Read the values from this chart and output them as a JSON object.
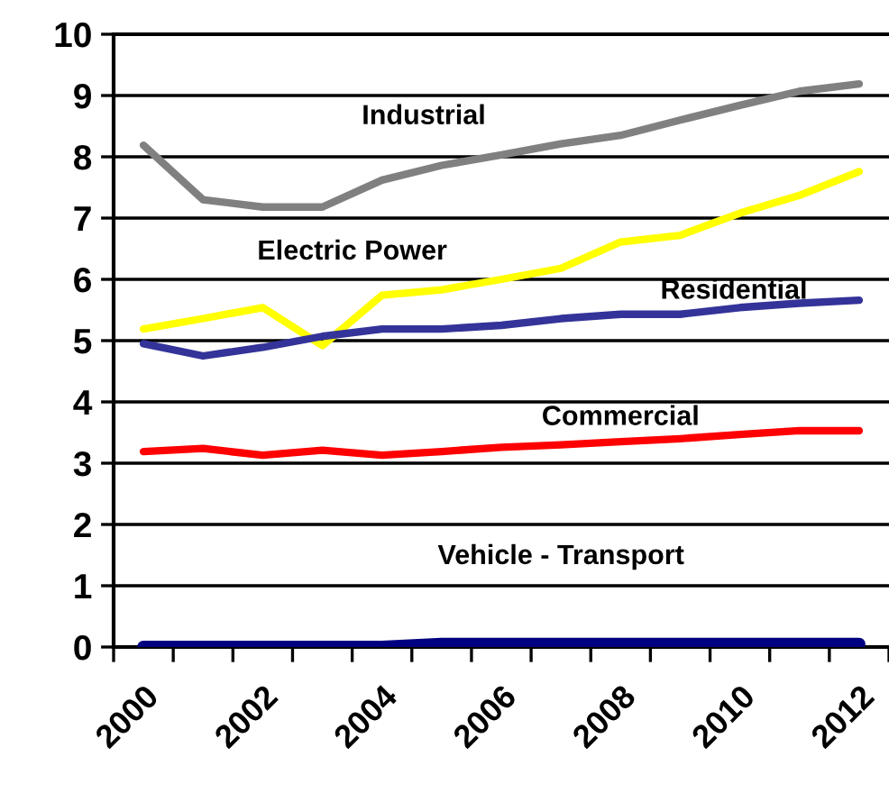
{
  "chart_data": {
    "type": "line",
    "categories": [
      "2000",
      null,
      "2002",
      null,
      "2004",
      null,
      "2006",
      null,
      "2008",
      null,
      "2010",
      null,
      "2012"
    ],
    "series": [
      {
        "name": "Industrial",
        "color": "#808080",
        "values": [
          8.19,
          7.3,
          7.18,
          7.18,
          7.62,
          7.86,
          8.03,
          8.21,
          8.35,
          8.6,
          8.84,
          9.07,
          9.19
        ]
      },
      {
        "name": "Electric Power",
        "color": "#ffff00",
        "values": [
          5.19,
          5.36,
          5.54,
          4.92,
          5.74,
          5.83,
          6.0,
          6.18,
          6.61,
          6.72,
          7.08,
          7.37,
          7.76
        ]
      },
      {
        "name": "Residential",
        "color": "#333399",
        "values": [
          4.95,
          4.75,
          4.89,
          5.07,
          5.19,
          5.19,
          5.25,
          5.36,
          5.43,
          5.43,
          5.54,
          5.61,
          5.66
        ]
      },
      {
        "name": "Commercial",
        "color": "#ff0000",
        "values": [
          3.19,
          3.24,
          3.13,
          3.21,
          3.13,
          3.19,
          3.26,
          3.3,
          3.35,
          3.4,
          3.47,
          3.53,
          3.53
        ]
      },
      {
        "name": "Vehicle - Transport",
        "color": "#000080",
        "values": [
          0,
          0,
          0,
          0,
          0,
          0.05,
          0.05,
          0.05,
          0.05,
          0.05,
          0.05,
          0.05,
          0.05
        ]
      }
    ],
    "ylim": [
      0,
      10
    ],
    "yticks": [
      0,
      1,
      2,
      3,
      4,
      5,
      6,
      7,
      8,
      9,
      10
    ],
    "grid": "y",
    "legend": false,
    "marker": "none",
    "line_style": "solid"
  }
}
